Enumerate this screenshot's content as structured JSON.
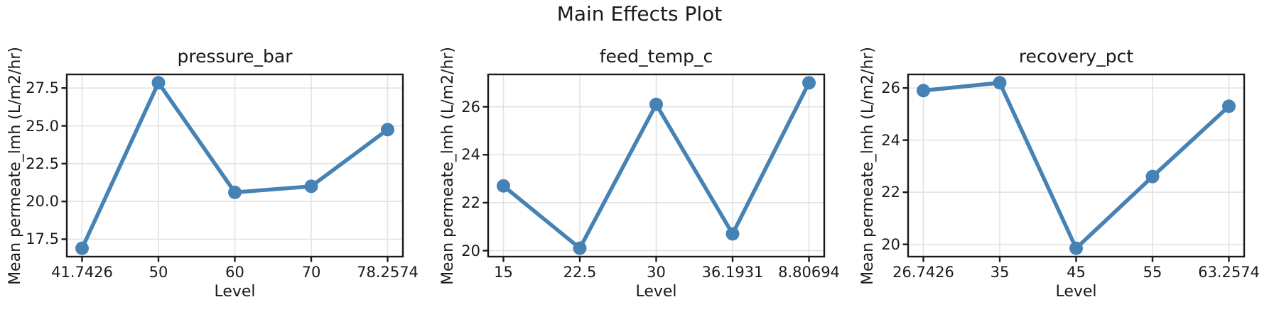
{
  "figure": {
    "suptitle": "Main Effects Plot",
    "background": "#ffffff",
    "text_color": "#1a1a1a",
    "spine_color": "#1a1a1a",
    "grid_color": "#e2e2e2",
    "accent_color": "#4682B4"
  },
  "chart_data": [
    {
      "type": "line",
      "title": "pressure_bar",
      "xlabel": "Level",
      "ylabel": "Mean permeate_lmh (L/m2/hr)",
      "categories": [
        "41.7426",
        "50",
        "60",
        "70",
        "78.2574"
      ],
      "values": [
        16.9,
        27.85,
        20.6,
        21.0,
        24.75
      ],
      "yticks": [
        17.5,
        20.0,
        22.5,
        25.0,
        27.5
      ],
      "ytick_labels": [
        "17.5",
        "20.0",
        "22.5",
        "25.0",
        "27.5"
      ],
      "ylim": [
        16.35,
        28.4
      ],
      "grid": true,
      "marker": "o",
      "line_color": "#4682B4"
    },
    {
      "type": "line",
      "title": "feed_temp_c",
      "xlabel": "Level",
      "ylabel": "Mean permeate_lmh (L/m2/hr)",
      "categories": [
        "15",
        "22.5",
        "30",
        "36.1931",
        "8.80694"
      ],
      "values": [
        22.7,
        20.1,
        26.1,
        20.7,
        27.0
      ],
      "yticks": [
        20,
        22,
        24,
        26
      ],
      "ytick_labels": [
        "20",
        "22",
        "24",
        "26"
      ],
      "ylim": [
        19.75,
        27.35
      ],
      "grid": true,
      "marker": "o",
      "line_color": "#4682B4"
    },
    {
      "type": "line",
      "title": "recovery_pct",
      "xlabel": "Level",
      "ylabel": "Mean permeate_lmh (L/m2/hr)",
      "categories": [
        "26.7426",
        "35",
        "45",
        "55",
        "63.2574"
      ],
      "values": [
        25.9,
        26.2,
        19.85,
        22.6,
        25.3
      ],
      "yticks": [
        20,
        22,
        24,
        26
      ],
      "ytick_labels": [
        "20",
        "22",
        "24",
        "26"
      ],
      "ylim": [
        19.53,
        26.52
      ],
      "grid": true,
      "marker": "o",
      "line_color": "#4682B4"
    }
  ]
}
